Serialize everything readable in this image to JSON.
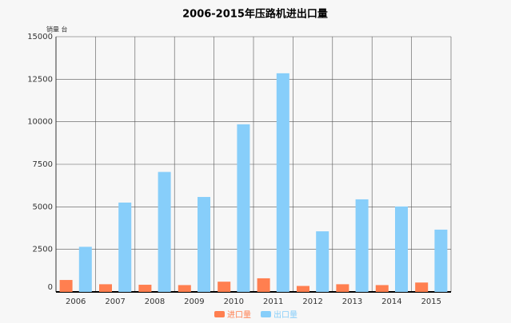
{
  "chart_data": {
    "type": "bar",
    "title": "2006-2015年压路机进出口量",
    "y_unit": "销量 台",
    "categories": [
      "2006",
      "2007",
      "2008",
      "2009",
      "2010",
      "2011",
      "2012",
      "2013",
      "2014",
      "2015"
    ],
    "series": [
      {
        "name": "进口量",
        "color": "#ff7f50",
        "values": [
          700,
          450,
          420,
          400,
          600,
          800,
          350,
          450,
          400,
          550
        ]
      },
      {
        "name": "出口量",
        "color": "#87cefa",
        "values": [
          2650,
          5250,
          7050,
          5580,
          9850,
          12850,
          3560,
          5440,
          5020,
          3660
        ]
      }
    ],
    "ylim": [
      0,
      15000
    ],
    "yticks": [
      0,
      2500,
      5000,
      7500,
      10000,
      12500,
      15000
    ],
    "grid": true
  }
}
